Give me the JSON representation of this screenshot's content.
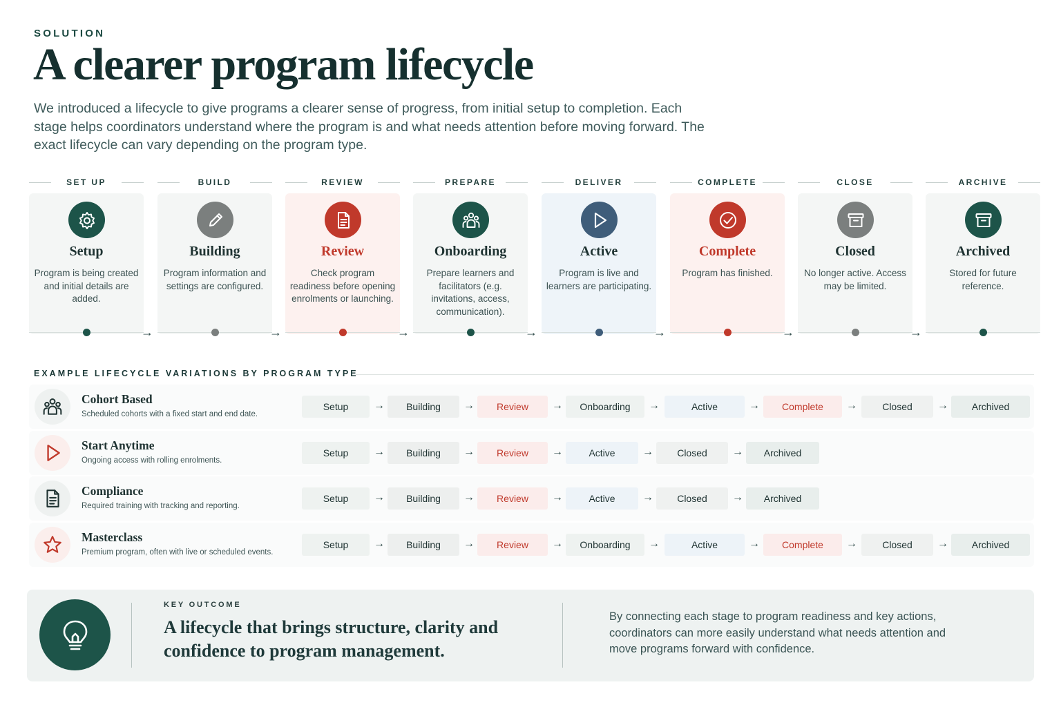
{
  "header": {
    "eyebrow": "SOLUTION",
    "title": "A clearer program lifecycle",
    "intro": "We introduced a lifecycle to give programs a clearer sense of progress, from initial setup to completion. Each stage helps coordinators understand where the program is and what needs attention before moving forward. The exact lifecycle can vary depending on the program type."
  },
  "stages": [
    {
      "phase": "SET UP",
      "title": "Setup",
      "description": "Program is being created and initial details are added.",
      "icon": "gear-icon",
      "color": "#1d5449",
      "card_bg": "#f4f6f5",
      "title_color": "#1f3332"
    },
    {
      "phase": "BUILD",
      "title": "Building",
      "description": "Program information and settings are configured.",
      "icon": "pencil-icon",
      "color": "#7b7f7e",
      "card_bg": "#f4f6f5",
      "title_color": "#1f3332"
    },
    {
      "phase": "REVIEW",
      "title": "Review",
      "description": "Check program readiness before opening enrolments or launching.",
      "icon": "document-icon",
      "color": "#c0392b",
      "card_bg": "#fdf1ef",
      "title_color": "#c0392b"
    },
    {
      "phase": "PREPARE",
      "title": "Onboarding",
      "description": "Prepare learners and facilitators (e.g. invitations, access, communication).",
      "icon": "people-icon",
      "color": "#1d5449",
      "card_bg": "#f4f6f5",
      "title_color": "#1f3332"
    },
    {
      "phase": "DELIVER",
      "title": "Active",
      "description": "Program is live and learners are participating.",
      "icon": "play-icon",
      "color": "#3f5d7a",
      "card_bg": "#eef4f9",
      "title_color": "#1f3332"
    },
    {
      "phase": "COMPLETE",
      "title": "Complete",
      "description": "Program has finished.",
      "icon": "check-circle-icon",
      "color": "#c0392b",
      "card_bg": "#fdf1ef",
      "title_color": "#c0392b"
    },
    {
      "phase": "CLOSE",
      "title": "Closed",
      "description": "No longer active. Access may be limited.",
      "icon": "archive-box-icon",
      "color": "#7b7f7e",
      "card_bg": "#f4f6f5",
      "title_color": "#1f3332"
    },
    {
      "phase": "ARCHIVE",
      "title": "Archived",
      "description": "Stored for future reference.",
      "icon": "archive-box-icon",
      "color": "#1d5449",
      "card_bg": "#f4f6f5",
      "title_color": "#1f3332"
    }
  ],
  "variations": {
    "heading": "EXAMPLE LIFECYCLE VARIATIONS BY PROGRAM TYPE",
    "rows": [
      {
        "name": "Cohort Based",
        "description": "Scheduled cohorts with a fixed start and end date.",
        "icon": "people-icon",
        "icon_color": "#1f3332",
        "icon_bg": "#eef1f0",
        "steps": [
          "Setup",
          "Building",
          "Review",
          "Onboarding",
          "Active",
          "Complete",
          "Closed",
          "Archived"
        ]
      },
      {
        "name": "Start Anytime",
        "description": "Ongoing access with rolling enrolments.",
        "icon": "play-icon",
        "icon_color": "#c0392b",
        "icon_bg": "#fbeeec",
        "steps": [
          "Setup",
          "Building",
          "Review",
          "Active",
          "Closed",
          "Archived"
        ]
      },
      {
        "name": "Compliance",
        "description": "Required training with tracking and reporting.",
        "icon": "document-icon",
        "icon_color": "#1f3332",
        "icon_bg": "#eef1f0",
        "steps": [
          "Setup",
          "Building",
          "Review",
          "Active",
          "Closed",
          "Archived"
        ]
      },
      {
        "name": "Masterclass",
        "description": "Premium program, often with live or scheduled events.",
        "icon": "star-icon",
        "icon_color": "#c0392b",
        "icon_bg": "#fbeeec",
        "steps": [
          "Setup",
          "Building",
          "Review",
          "Onboarding",
          "Active",
          "Complete",
          "Closed",
          "Archived"
        ]
      }
    ]
  },
  "step_styles": {
    "Setup": {
      "bg": "#eef2f0",
      "color": "#1f3332"
    },
    "Building": {
      "bg": "#edefee",
      "color": "#1f3332"
    },
    "Review": {
      "bg": "#fbeceb",
      "color": "#c0392b"
    },
    "Onboarding": {
      "bg": "#eef2f0",
      "color": "#1f3332"
    },
    "Active": {
      "bg": "#edf3f8",
      "color": "#1f3332"
    },
    "Complete": {
      "bg": "#fbeceb",
      "color": "#c0392b"
    },
    "Closed": {
      "bg": "#eff1f0",
      "color": "#1f3332"
    },
    "Archived": {
      "bg": "#e8eeec",
      "color": "#1f3332"
    }
  },
  "outcome": {
    "label": "KEY OUTCOME",
    "title": "A lifecycle that brings structure, clarity and confidence to program management.",
    "text": "By connecting each stage to program readiness and key actions, coordinators can more easily understand what needs attention and move programs forward with confidence.",
    "icon": "lightbulb-icon"
  }
}
